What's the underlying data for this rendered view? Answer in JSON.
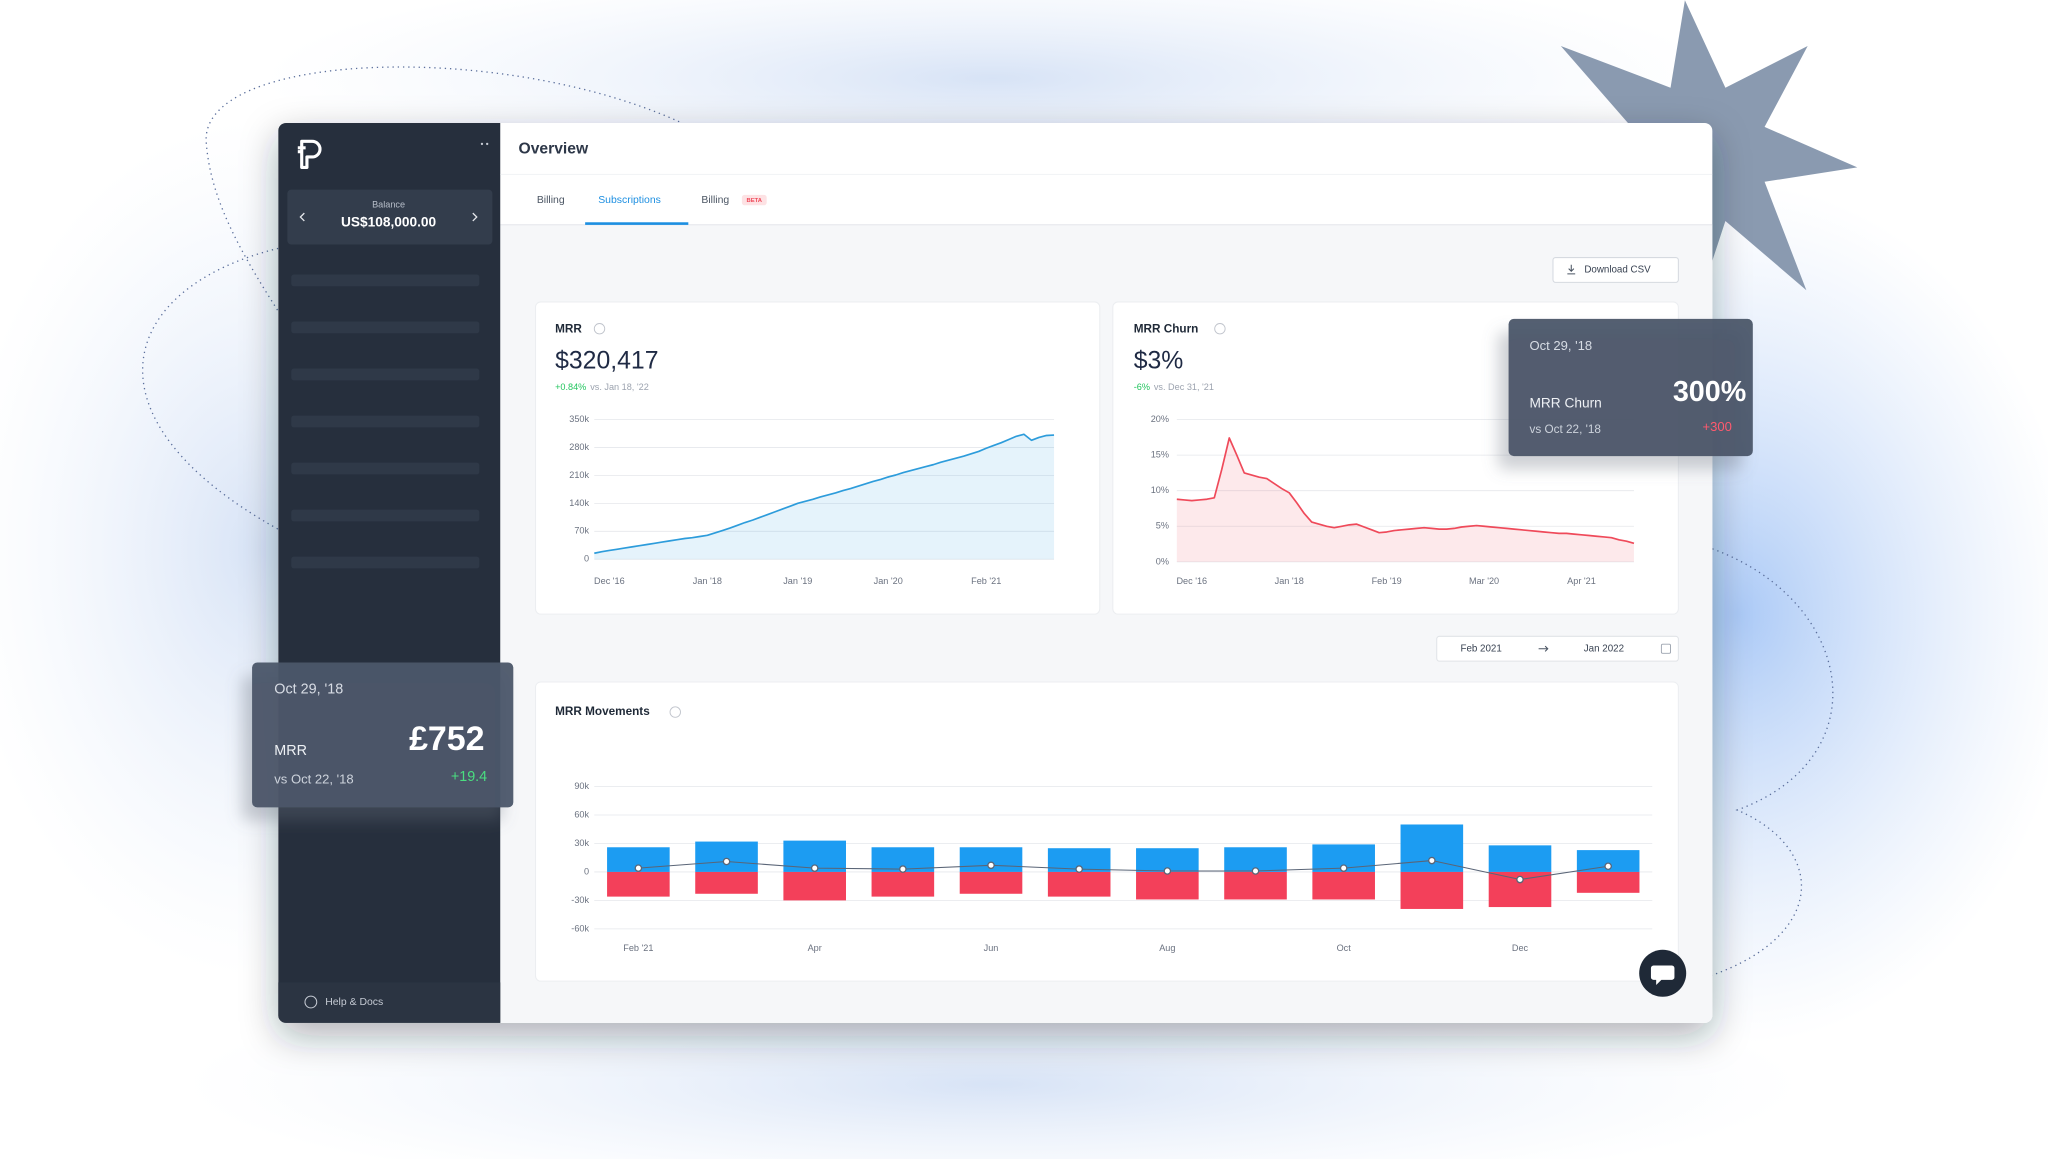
{
  "sidebar": {
    "balance_label": "Balance",
    "balance": "US$108,000.00",
    "help": "Help & Docs"
  },
  "header": {
    "title": "Overview"
  },
  "tabs": [
    {
      "label": "Billing"
    },
    {
      "label": "Subscriptions"
    },
    {
      "label": "Billing",
      "badge": "BETA"
    }
  ],
  "download": "Download CSV",
  "date_range": {
    "from": "Feb 2021",
    "to": "Jan 2022"
  },
  "tooltips": [
    {
      "date": "Oct 29, '18",
      "metric": "MRR Churn",
      "value": "300%",
      "comparison": "vs Oct 22, '18",
      "change": "+300"
    },
    {
      "date": "Oct 29, '18",
      "metric": "MRR",
      "value": "£752",
      "comparison": "vs Oct 22, '18",
      "change": "+19.4"
    }
  ],
  "chart_data": [
    {
      "type": "area",
      "title": "MRR",
      "value": "$320,417",
      "change": "+0.84%",
      "comparison": "vs. Jan 18, '22",
      "categories": [
        null,
        null,
        "Dec '16",
        null,
        null,
        null,
        null,
        null,
        null,
        null,
        null,
        null,
        null,
        null,
        null,
        "Jan '18",
        null,
        null,
        null,
        null,
        null,
        null,
        null,
        null,
        null,
        null,
        null,
        "Jan '19",
        null,
        null,
        null,
        null,
        null,
        null,
        null,
        null,
        null,
        null,
        null,
        "Jan '20",
        null,
        null,
        null,
        null,
        null,
        null,
        null,
        null,
        null,
        null,
        null,
        null,
        "Feb '21",
        null,
        null,
        null,
        null,
        null,
        null,
        null,
        null,
        null
      ],
      "values": [
        15000,
        19000,
        22000,
        25000,
        28000,
        31000,
        34000,
        37000,
        40000,
        43000,
        46000,
        49000,
        52000,
        54000,
        57000,
        60000,
        66000,
        72000,
        78000,
        85000,
        92000,
        98000,
        105000,
        112000,
        119000,
        126000,
        133000,
        140000,
        145000,
        150000,
        156000,
        161000,
        166000,
        172000,
        177000,
        183000,
        189000,
        195000,
        200000,
        206000,
        211000,
        217000,
        222000,
        227000,
        232000,
        237000,
        243000,
        248000,
        253000,
        258000,
        264000,
        270000,
        278000,
        285000,
        292000,
        300000,
        308000,
        313000,
        298000,
        305000,
        310000,
        311000
      ],
      "color": "#2d9cdb",
      "grid": true,
      "ylim": [
        0,
        350000
      ],
      "yticks": [
        0,
        {
          "value": 70000,
          "label": "70k"
        },
        {
          "value": 140000,
          "label": "140k"
        },
        {
          "value": 210000,
          "label": "210k"
        },
        {
          "value": 280000,
          "label": "280k"
        },
        {
          "value": 350000,
          "label": "350k"
        }
      ]
    },
    {
      "type": "area",
      "title": "MRR Churn",
      "value": "$3%",
      "change": "-6%",
      "comparison": "vs. Dec 31, '21",
      "categories": [
        null,
        null,
        "Dec '16",
        null,
        null,
        null,
        null,
        null,
        null,
        null,
        null,
        null,
        null,
        null,
        null,
        "Jan '18",
        null,
        null,
        null,
        null,
        null,
        null,
        null,
        null,
        null,
        null,
        null,
        null,
        "Feb '19",
        null,
        null,
        null,
        null,
        null,
        null,
        null,
        null,
        null,
        null,
        null,
        null,
        "Mar '20",
        null,
        null,
        null,
        null,
        null,
        null,
        null,
        null,
        null,
        null,
        null,
        null,
        "Apr '21",
        null,
        null,
        null,
        null,
        null,
        null,
        null
      ],
      "values": [
        8.8,
        8.7,
        8.6,
        8.7,
        8.8,
        9.0,
        13,
        17.4,
        15,
        12.5,
        12.2,
        11.9,
        11.7,
        11.0,
        10.3,
        9.7,
        8.3,
        6.8,
        5.6,
        5.3,
        5.0,
        4.8,
        5.0,
        5.2,
        5.3,
        4.9,
        4.5,
        4.1,
        4.2,
        4.4,
        4.5,
        4.6,
        4.7,
        4.8,
        4.7,
        4.6,
        4.6,
        4.7,
        4.9,
        5.0,
        5.1,
        5.0,
        4.9,
        4.8,
        4.7,
        4.6,
        4.5,
        4.4,
        4.3,
        4.2,
        4.1,
        4.0,
        4.0,
        3.9,
        3.8,
        3.7,
        3.6,
        3.5,
        3.4,
        3.1,
        2.9,
        2.6
      ],
      "color": "#ef4a5a",
      "grid": true,
      "ylim": [
        0,
        20
      ],
      "yticks": [
        {
          "value": 0,
          "label": "0%"
        },
        {
          "value": 5,
          "label": "5%"
        },
        {
          "value": 10,
          "label": "10%"
        },
        {
          "value": 15,
          "label": "15%"
        },
        {
          "value": 20,
          "label": "20%"
        }
      ]
    },
    {
      "type": "bar",
      "title": "MRR Movements",
      "categories": [
        "Feb '21",
        null,
        "Apr",
        null,
        "Jun",
        null,
        "Aug",
        null,
        "Oct",
        null,
        "Dec",
        null
      ],
      "series": [
        {
          "color": "#1c9cf2",
          "values": [
            26000,
            32000,
            33000,
            26000,
            26000,
            25000,
            25000,
            26000,
            29000,
            50000,
            28000,
            23000
          ]
        },
        {
          "color": "#f3405a",
          "values": [
            -26000,
            -23000,
            -30000,
            -26000,
            -23000,
            -26000,
            -29000,
            -29000,
            -29000,
            -39000,
            -37000,
            -22000
          ]
        },
        {
          "type": "line",
          "color": "#5a6577",
          "values": [
            4000,
            11000,
            4000,
            3000,
            7000,
            3000,
            1000,
            1000,
            4000,
            12000,
            -8000,
            6000
          ]
        }
      ],
      "grid": true,
      "ylim": [
        -60000,
        90000
      ],
      "yticks": [
        {
          "value": -60000,
          "label": "-60k"
        },
        {
          "value": -30000,
          "label": "-30k"
        },
        0,
        {
          "value": 30000,
          "label": "30k"
        },
        {
          "value": 60000,
          "label": "60k"
        },
        {
          "value": 90000,
          "label": "90k"
        }
      ]
    }
  ]
}
